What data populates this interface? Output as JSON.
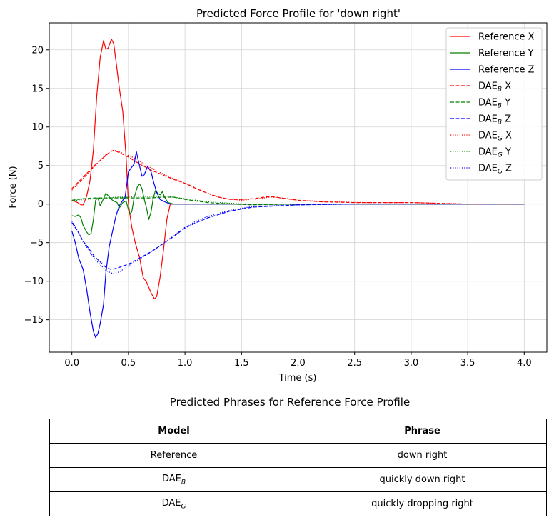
{
  "chart_data": {
    "type": "line",
    "title": "Predicted Force Profile for 'down right'",
    "xlabel": "Time (s)",
    "ylabel": "Force (N)",
    "xlim": [
      -0.2,
      4.2
    ],
    "ylim": [
      -19.2,
      23.5
    ],
    "xticks": [
      "0.0",
      "0.5",
      "1.0",
      "1.5",
      "2.0",
      "2.5",
      "3.0",
      "3.5",
      "4.0"
    ],
    "yticks": [
      "−15",
      "−10",
      "−5",
      "0",
      "5",
      "10",
      "15",
      "20"
    ],
    "grid": true,
    "legend_position": "top-right",
    "series": [
      {
        "name": "Reference X",
        "color": "#ff0000",
        "style": "solid",
        "x": [
          0,
          0.05,
          0.08,
          0.1,
          0.13,
          0.16,
          0.19,
          0.22,
          0.25,
          0.28,
          0.3,
          0.32,
          0.35,
          0.37,
          0.39,
          0.42,
          0.45,
          0.48,
          0.5,
          0.53,
          0.56,
          0.6,
          0.63,
          0.66,
          0.7,
          0.73,
          0.75,
          0.78,
          0.81,
          0.84,
          0.87,
          0.9,
          0.95,
          1.0,
          1.5,
          2.0,
          2.5,
          3.0,
          3.5,
          4.0
        ],
        "y": [
          0.5,
          0.2,
          -0.1,
          -0.1,
          1,
          3,
          7,
          14,
          19,
          21.2,
          20.1,
          20.2,
          21.4,
          20.8,
          18.5,
          15,
          12,
          6,
          0,
          -3,
          -5,
          -7,
          -9.5,
          -10.1,
          -11.5,
          -12.3,
          -12,
          -9.5,
          -6,
          -2,
          0,
          0,
          0,
          0,
          0,
          0,
          0,
          0,
          0,
          0
        ]
      },
      {
        "name": "Reference Y",
        "color": "#008000",
        "style": "solid",
        "x": [
          0,
          0.03,
          0.06,
          0.08,
          0.1,
          0.13,
          0.15,
          0.17,
          0.19,
          0.21,
          0.23,
          0.25,
          0.27,
          0.3,
          0.32,
          0.35,
          0.37,
          0.4,
          0.42,
          0.45,
          0.48,
          0.51,
          0.53,
          0.55,
          0.58,
          0.6,
          0.62,
          0.64,
          0.66,
          0.68,
          0.7,
          0.72,
          0.74,
          0.76,
          0.78,
          0.8,
          0.82,
          0.85,
          0.9,
          1.0,
          1.5,
          2.0,
          2.5,
          3.0,
          3.5,
          4.0
        ],
        "y": [
          -1.5,
          -1.6,
          -1.4,
          -1.8,
          -2.8,
          -3.6,
          -4,
          -3.8,
          -2,
          0.5,
          0.8,
          -0.2,
          0.4,
          1.4,
          1.1,
          0.6,
          0.4,
          0.2,
          -0.5,
          0.2,
          0.4,
          -1.3,
          -1,
          0.8,
          2.3,
          2.6,
          2,
          0.6,
          -0.5,
          -2,
          -1,
          0.8,
          1.8,
          1.4,
          1.2,
          1.6,
          0.9,
          0.2,
          0,
          0,
          0,
          0,
          0,
          0,
          0,
          0
        ]
      },
      {
        "name": "Reference Z",
        "color": "#0000ff",
        "style": "solid",
        "x": [
          0,
          0.03,
          0.06,
          0.1,
          0.13,
          0.16,
          0.19,
          0.21,
          0.23,
          0.25,
          0.28,
          0.3,
          0.33,
          0.36,
          0.39,
          0.42,
          0.45,
          0.47,
          0.5,
          0.52,
          0.55,
          0.57,
          0.59,
          0.62,
          0.64,
          0.67,
          0.7,
          0.72,
          0.75,
          0.78,
          0.82,
          0.87,
          0.9,
          1.0,
          1.5,
          2.0,
          2.5,
          3.0,
          3.5,
          4.0
        ],
        "y": [
          -3.5,
          -5,
          -7,
          -8.5,
          -11,
          -14,
          -16.5,
          -17.3,
          -16.8,
          -15.5,
          -13,
          -9,
          -5.5,
          -3.5,
          -1.5,
          -0.2,
          0.5,
          0.8,
          4.2,
          4.6,
          5.2,
          6.8,
          5.5,
          3.6,
          3.8,
          4.9,
          4.2,
          3,
          1.5,
          0.6,
          0.3,
          0,
          0,
          0,
          0,
          0,
          0,
          0,
          0,
          0
        ]
      },
      {
        "name": "DAE_B X",
        "label_main": "DAE",
        "label_sub": "B",
        "label_tail": " X",
        "color": "#ff0000",
        "style": "dashed",
        "x": [
          0,
          0.1,
          0.2,
          0.3,
          0.35,
          0.4,
          0.5,
          0.6,
          0.7,
          0.8,
          0.9,
          1.0,
          1.1,
          1.2,
          1.3,
          1.4,
          1.5,
          1.6,
          1.7,
          1.75,
          1.8,
          1.9,
          2.0,
          2.2,
          2.5,
          3.0,
          3.5,
          4.0
        ],
        "y": [
          2,
          3.5,
          5,
          6.3,
          6.9,
          6.8,
          6.1,
          5.2,
          4.4,
          3.8,
          3.2,
          2.7,
          2,
          1.4,
          0.9,
          0.6,
          0.6,
          0.7,
          0.9,
          1,
          0.9,
          0.7,
          0.5,
          0.3,
          0.2,
          0.2,
          0,
          0
        ]
      },
      {
        "name": "DAE_B Y",
        "label_main": "DAE",
        "label_sub": "B",
        "label_tail": " Y",
        "color": "#008000",
        "style": "dashed",
        "x": [
          0,
          0.1,
          0.2,
          0.3,
          0.4,
          0.5,
          0.6,
          0.7,
          0.8,
          0.9,
          1.0,
          1.2,
          1.4,
          1.6,
          2.0,
          2.5,
          3.0,
          3.5,
          4.0
        ],
        "y": [
          0.5,
          0.7,
          0.8,
          0.8,
          0.8,
          0.8,
          0.8,
          0.8,
          0.9,
          0.9,
          0.6,
          0.2,
          0,
          -0.1,
          0,
          0,
          0,
          0,
          0
        ]
      },
      {
        "name": "DAE_B Z",
        "label_main": "DAE",
        "label_sub": "B",
        "label_tail": " Z",
        "color": "#0000ff",
        "style": "dashed",
        "x": [
          0,
          0.05,
          0.1,
          0.2,
          0.3,
          0.35,
          0.4,
          0.5,
          0.6,
          0.7,
          0.8,
          0.9,
          1.0,
          1.1,
          1.2,
          1.4,
          1.6,
          2.0,
          2.5,
          3.0,
          3.5,
          4.0
        ],
        "y": [
          -2.4,
          -3.5,
          -4.8,
          -6.8,
          -8.2,
          -8.5,
          -8.3,
          -7.8,
          -7,
          -6.2,
          -5.2,
          -4.2,
          -3.1,
          -2.4,
          -1.8,
          -0.9,
          -0.4,
          -0.1,
          0,
          0,
          0,
          0
        ]
      },
      {
        "name": "DAE_G X",
        "label_main": "DAE",
        "label_sub": "G",
        "label_tail": " X",
        "color": "#ff0000",
        "style": "dotted",
        "x": [
          0,
          0.1,
          0.2,
          0.3,
          0.37,
          0.45,
          0.55,
          0.65,
          0.75,
          0.85,
          0.95,
          1.05,
          1.15,
          1.25,
          1.35,
          1.5,
          1.65,
          1.75,
          1.85,
          2.0,
          2.3,
          2.6,
          3.0,
          3.5,
          4.0
        ],
        "y": [
          1.8,
          3.3,
          4.9,
          6.4,
          7,
          6.6,
          6,
          5.1,
          4.3,
          3.6,
          3,
          2.4,
          1.7,
          1.1,
          0.7,
          0.5,
          0.7,
          0.9,
          0.8,
          0.5,
          0.3,
          0.2,
          0.2,
          0,
          0
        ]
      },
      {
        "name": "DAE_G Y",
        "label_main": "DAE",
        "label_sub": "G",
        "label_tail": " Y",
        "color": "#008000",
        "style": "dotted",
        "x": [
          0,
          0.1,
          0.2,
          0.3,
          0.4,
          0.5,
          0.6,
          0.7,
          0.8,
          0.9,
          1.0,
          1.2,
          1.4,
          1.6,
          2.0,
          2.5,
          3.0,
          3.5,
          4.0
        ],
        "y": [
          0.4,
          0.6,
          0.7,
          0.8,
          0.9,
          0.9,
          1,
          1,
          1,
          0.9,
          0.7,
          0.3,
          0.1,
          0,
          0,
          0,
          0,
          0,
          0
        ]
      },
      {
        "name": "DAE_G Z",
        "label_main": "DAE",
        "label_sub": "G",
        "label_tail": " Z",
        "color": "#0000ff",
        "style": "dotted",
        "x": [
          0,
          0.05,
          0.1,
          0.2,
          0.3,
          0.36,
          0.42,
          0.5,
          0.6,
          0.7,
          0.8,
          0.9,
          1.0,
          1.1,
          1.2,
          1.4,
          1.6,
          2.0,
          2.5,
          3.0,
          3.5,
          4.0
        ],
        "y": [
          -2.2,
          -3.4,
          -4.9,
          -7.1,
          -8.6,
          -9,
          -8.8,
          -8,
          -7.1,
          -6.2,
          -5.2,
          -4.1,
          -3,
          -2.2,
          -1.6,
          -0.8,
          -0.3,
          -0.1,
          0,
          0,
          0,
          0
        ]
      }
    ]
  },
  "table": {
    "title": "Predicted Phrases for Reference Force Profile",
    "headers": [
      "Model",
      "Phrase"
    ],
    "rows": [
      {
        "model": "Reference",
        "model_sub": "",
        "phrase": "down right"
      },
      {
        "model": "DAE",
        "model_sub": "B",
        "phrase": "quickly down right"
      },
      {
        "model": "DAE",
        "model_sub": "G",
        "phrase": "quickly dropping right"
      }
    ]
  }
}
